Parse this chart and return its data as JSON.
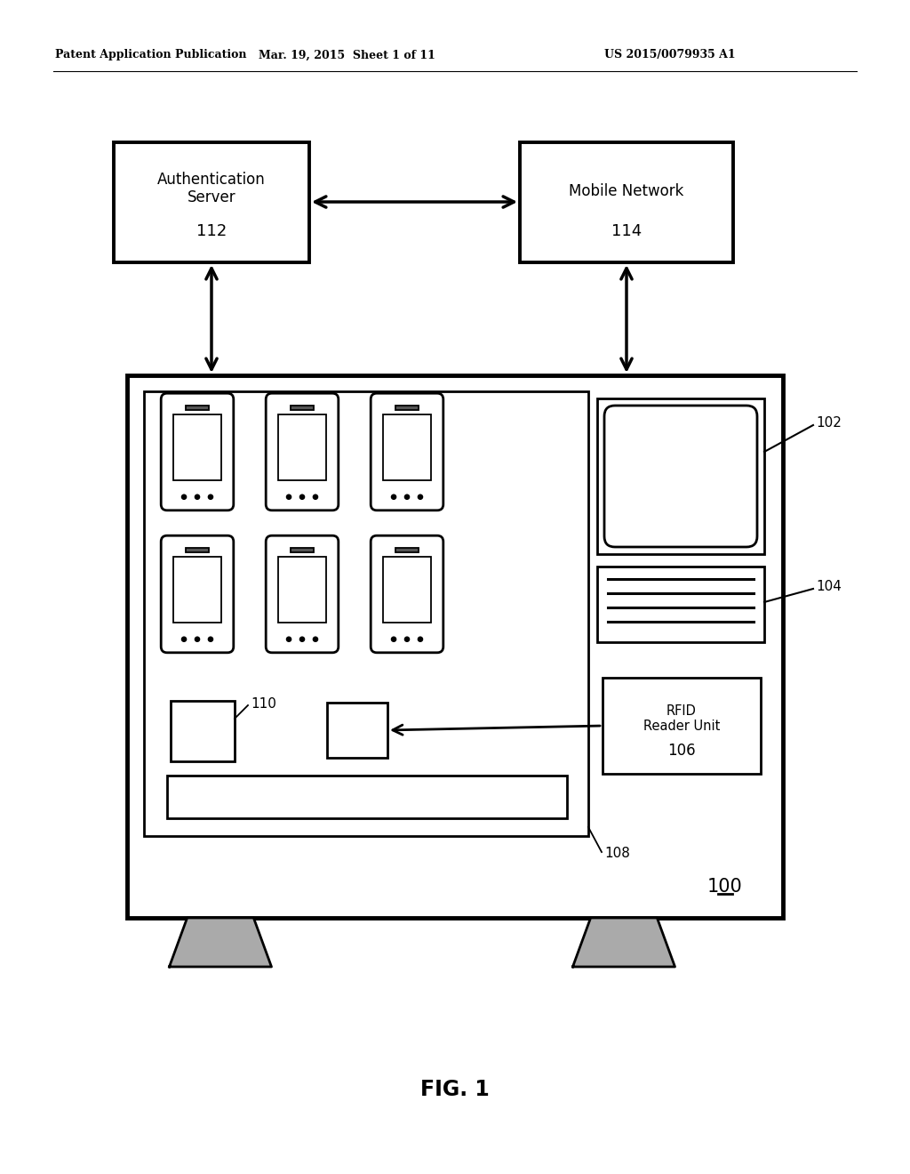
{
  "bg_color": "#ffffff",
  "header_left": "Patent Application Publication",
  "header_mid": "Mar. 19, 2015  Sheet 1 of 11",
  "header_right": "US 2015/0079935 A1",
  "fig_label": "FIG. 1",
  "auth_server_label": "Authentication\nServer",
  "auth_server_num": "112",
  "mobile_network_label": "Mobile Network",
  "mobile_network_num": "114",
  "rfid_label": "RFID\nReader Unit",
  "rfid_num": "106",
  "label_100": "100",
  "label_102": "102",
  "label_104": "104",
  "label_108": "108",
  "label_110": "110"
}
